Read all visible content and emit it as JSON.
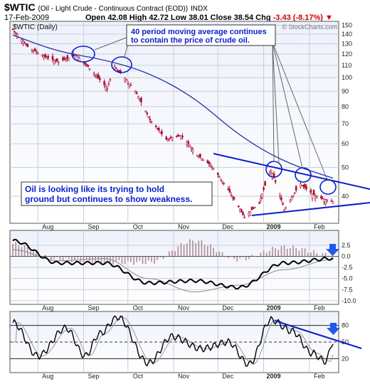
{
  "header": {
    "symbol": "$WTIC",
    "name": "(Oil - Light Crude - Continuous Contract (EOD))",
    "exchange": "INDX",
    "date": "17-Feb-2009",
    "open_label": "Open",
    "open": "42.08",
    "high_label": "High",
    "high": "42.72",
    "low_label": "Low",
    "low": "38.01",
    "close_label": "Close",
    "close": "38.54",
    "chg_label": "Chg",
    "chg": "-3.43 (-8.17%)"
  },
  "panel_label": "$WTIC (Daily)",
  "watermark": "© StockCharts.com",
  "annotations": {
    "ma_note_line1": "40 period moving average continues",
    "ma_note_line2": "to contain the price of crude oil.",
    "oil_note_line1": "Oil is looking like its trying to hold",
    "oil_note_line2": "ground but continues to show weakness."
  },
  "colors": {
    "price_bars": "#aa1133",
    "moving_average": "#2233aa",
    "annotation": "#0a1fcc",
    "macd_hist": "#b08c96",
    "signal_arrow": "#1f5be8"
  },
  "chart_data": [
    {
      "type": "candlestick",
      "series": [
        {
          "name": "$WTIC (Daily)",
          "x": [
            "2008-07-15",
            "2008-07-25",
            "2008-08-05",
            "2008-08-15",
            "2008-08-27",
            "2008-09-10",
            "2008-09-17",
            "2008-09-22",
            "2008-10-06",
            "2008-10-16",
            "2008-10-27",
            "2008-11-06",
            "2008-11-17",
            "2008-11-26",
            "2008-12-08",
            "2008-12-19",
            "2008-12-29",
            "2009-01-06",
            "2009-01-15",
            "2009-01-26",
            "2009-02-05",
            "2009-02-12",
            "2009-02-17"
          ],
          "close": [
            145,
            127,
            118,
            113,
            119,
            101,
            92,
            109,
            90,
            72,
            62,
            64,
            55,
            51,
            42,
            34,
            38,
            49,
            36,
            44,
            40,
            39,
            38.5
          ]
        },
        {
          "name": "40 period moving average",
          "x": [
            "2008-07-15",
            "2008-08-15",
            "2008-09-15",
            "2008-10-15",
            "2008-11-15",
            "2008-12-15",
            "2009-01-15",
            "2009-02-17"
          ],
          "values": [
            139,
            122,
            115,
            104,
            86,
            64,
            52,
            46
          ]
        }
      ],
      "y_ticks": [
        40,
        50,
        60,
        70,
        80,
        90,
        100,
        110,
        120,
        130,
        140,
        150
      ],
      "y_scale": "log",
      "ylim": [
        33,
        152
      ],
      "x_ticks": [
        "Aug",
        "Sep",
        "Oct",
        "Nov",
        "Dec",
        "2009",
        "Feb"
      ],
      "grid": true
    },
    {
      "type": "line",
      "series": [
        {
          "name": "MACD",
          "x": [
            "2008-07-15",
            "2008-08-15",
            "2008-09-15",
            "2008-10-15",
            "2008-11-15",
            "2008-12-15",
            "2009-01-15",
            "2009-02-17"
          ],
          "values": [
            3.5,
            -1.5,
            -1.5,
            -6,
            -5.5,
            -7,
            -1.5,
            -0.5
          ]
        },
        {
          "name": "Signal",
          "x": [
            "2008-07-15",
            "2008-08-15",
            "2008-09-15",
            "2008-10-15",
            "2008-11-15",
            "2008-12-15",
            "2009-01-15",
            "2009-02-17"
          ],
          "values": [
            1.5,
            -1,
            -0.5,
            -5,
            -8,
            -6.5,
            -3,
            -0.7
          ]
        }
      ],
      "y_ticks": [
        2.5,
        0.0,
        -2.5,
        -5.0,
        -7.5,
        -10.0
      ],
      "ylim": [
        -10.5,
        5.2
      ]
    },
    {
      "type": "line",
      "series": [
        {
          "name": "Oscillator",
          "x": [
            "2008-07-15",
            "2008-08-01",
            "2008-08-20",
            "2008-09-02",
            "2008-09-12",
            "2008-09-24",
            "2008-10-15",
            "2008-10-31",
            "2008-11-20",
            "2008-12-08",
            "2008-12-22",
            "2009-01-06",
            "2009-01-20",
            "2009-02-03",
            "2009-02-12",
            "2009-02-17"
          ],
          "values": [
            85,
            25,
            75,
            25,
            65,
            95,
            12,
            60,
            38,
            50,
            10,
            90,
            70,
            30,
            15,
            50
          ]
        }
      ],
      "y_ticks": [
        20,
        50,
        80
      ],
      "ylim": [
        0,
        100
      ]
    }
  ]
}
